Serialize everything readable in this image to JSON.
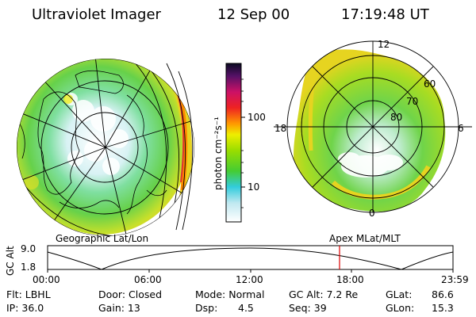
{
  "header": {
    "instrument": "Ultraviolet Imager",
    "date": "12 Sep 00",
    "time": "17:19:48 UT"
  },
  "colorbar": {
    "unit_label": "photon cm⁻²s⁻¹",
    "tick_labels": [
      "100",
      "10"
    ]
  },
  "geo_panel": {
    "caption": "Geographic Lat/Lon"
  },
  "polar_panel": {
    "caption": "Apex MLat/MLT",
    "mlt_labels": {
      "top": "12",
      "left": "18",
      "right": "6",
      "bottom": "0"
    },
    "lat_labels": [
      "60",
      "70",
      "80"
    ]
  },
  "altitude_plot": {
    "ylabel": "GC Alt",
    "ytick_labels": [
      "9.0",
      "1.8"
    ],
    "xtick_labels": [
      "00:00",
      "06:00",
      "12:00",
      "18:00",
      "23:59"
    ],
    "marker_color": "#dd0000"
  },
  "info": {
    "flt": "Flt: LBHL",
    "ip": "IP: 36.0",
    "door": "Door: Closed",
    "gain": "Gain: 13",
    "mode": "Mode: Normal",
    "dsp_label": "Dsp:",
    "dsp_value": "4.5",
    "gcalt": "GC Alt: 7.2 Re",
    "seq": "Seq: 39",
    "glat_label": "GLat:",
    "glat_value": "86.6",
    "glon_label": "GLon:",
    "glon_value": "15.3"
  }
}
